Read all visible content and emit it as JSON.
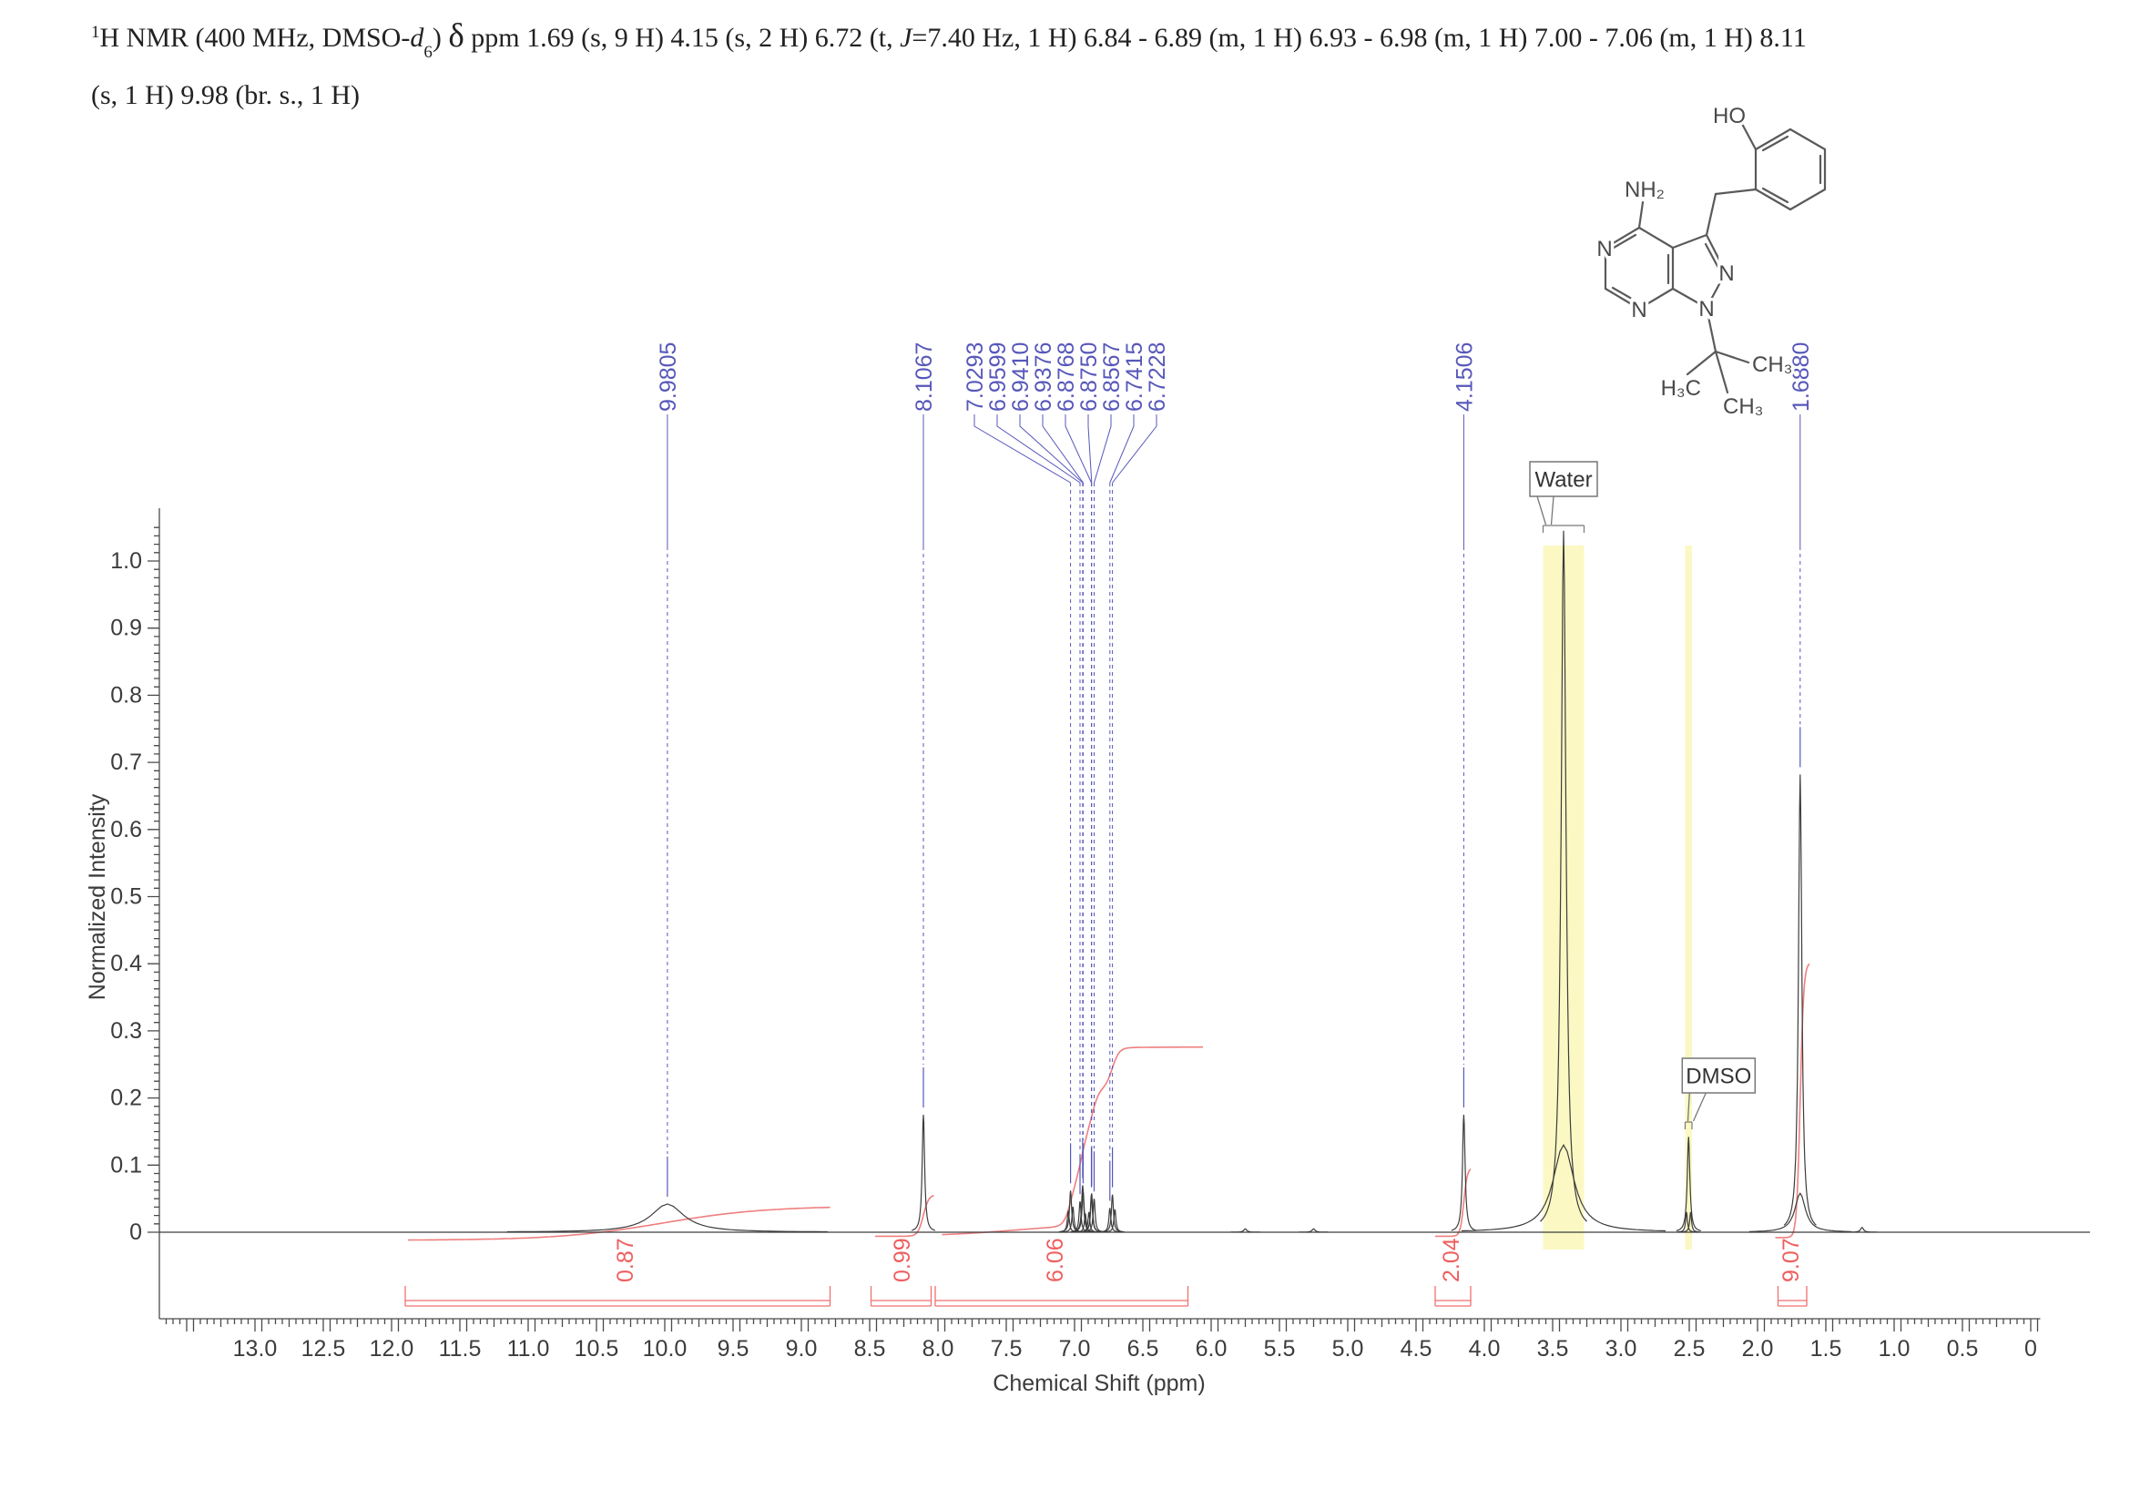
{
  "page": {
    "background": "#ffffff"
  },
  "title": {
    "parts": [
      {
        "t": "1",
        "s": "sup"
      },
      {
        "t": "H NMR (400 MHz, DMSO-"
      },
      {
        "t": "d",
        "s": "i"
      },
      {
        "t": "6",
        "s": "sub"
      },
      {
        "t": ") "
      },
      {
        "t": "δ",
        "s": "delta"
      },
      {
        "t": " ppm 1.69 (s, 9 H) 4.15 (s, 2 H) 6.72 (t, "
      },
      {
        "t": "J",
        "s": "i"
      },
      {
        "t": "=7.40 Hz, 1 H) 6.84 - 6.89 (m, 1 H) 6.93 - 6.98 (m, 1 H) 7.00 - 7.06 (m, 1 H) 8.11"
      },
      {
        "s": "br"
      },
      {
        "t": "(s, 1 H) 9.98 (br. s., 1 H)"
      }
    ]
  },
  "structure": {
    "atoms": [
      "HO",
      "NH₂",
      "N",
      "N",
      "N",
      "N",
      "CH₃",
      "H₃C",
      "CH₃"
    ]
  },
  "chart_data": {
    "type": "line",
    "description": "1H NMR spectrum, 400 MHz, DMSO-d6",
    "xlabel": "Chemical Shift (ppm)",
    "ylabel": "Normalized Intensity",
    "xlim": [
      13.7,
      -0.07
    ],
    "ylim": [
      0,
      1.078
    ],
    "x_axis_reversed": true,
    "grid": false,
    "x_tick_labels": [
      "13.0",
      "12.5",
      "12.0",
      "11.5",
      "11.0",
      "10.5",
      "10.0",
      "9.5",
      "9.0",
      "8.5",
      "8.0",
      "7.5",
      "7.0",
      "6.5",
      "6.0",
      "5.5",
      "5.0",
      "4.5",
      "4.0",
      "3.5",
      "3.0",
      "2.5",
      "2.0",
      "1.5",
      "1.0",
      "0.5",
      "0"
    ],
    "y_tick_labels": [
      "0",
      "0.1",
      "0.2",
      "0.3",
      "0.4",
      "0.5",
      "0.6",
      "0.7",
      "0.8",
      "0.9",
      "1.0"
    ],
    "peak_labels": [
      {
        "text": "9.9805",
        "ppm": 9.9805,
        "label_ppm": 9.9805,
        "top_h": 0.042,
        "cluster": false
      },
      {
        "text": "8.1067",
        "ppm": 8.1067,
        "label_ppm": 8.1067,
        "top_h": 0.175,
        "cluster": false
      },
      {
        "text": "7.0293",
        "ppm": 7.0293,
        "label_ppm": 7.7333,
        "top_h": 0.062,
        "cluster": true
      },
      {
        "text": "6.9599",
        "ppm": 6.9599,
        "label_ppm": 7.5667,
        "top_h": 0.046,
        "cluster": true
      },
      {
        "text": "6.9410",
        "ppm": 6.941,
        "label_ppm": 7.4,
        "top_h": 0.07,
        "cluster": true
      },
      {
        "text": "6.9376",
        "ppm": 6.9376,
        "label_ppm": 7.2333,
        "top_h": 0.062,
        "cluster": true
      },
      {
        "text": "6.8768",
        "ppm": 6.8768,
        "label_ppm": 7.0667,
        "top_h": 0.056,
        "cluster": true
      },
      {
        "text": "6.8750",
        "ppm": 6.875,
        "label_ppm": 6.9,
        "top_h": 0.058,
        "cluster": true
      },
      {
        "text": "6.8567",
        "ppm": 6.8567,
        "label_ppm": 6.7333,
        "top_h": 0.05,
        "cluster": true
      },
      {
        "text": "6.7415",
        "ppm": 6.7415,
        "label_ppm": 6.5667,
        "top_h": 0.036,
        "cluster": true
      },
      {
        "text": "6.7228",
        "ppm": 6.7228,
        "label_ppm": 6.4,
        "top_h": 0.056,
        "cluster": true
      },
      {
        "text": "4.1506",
        "ppm": 4.1506,
        "label_ppm": 4.1506,
        "top_h": 0.175,
        "cluster": false
      },
      {
        "text": "1.6880",
        "ppm": 1.688,
        "label_ppm": 1.688,
        "top_h": 0.682,
        "cluster": false
      }
    ],
    "trace_peaks": [
      {
        "ppm": 9.9805,
        "h": 0.042,
        "w": 22
      },
      {
        "ppm": 8.1067,
        "h": 0.175,
        "w": 1.6
      },
      {
        "ppm": 7.046,
        "h": 0.032,
        "w": 1.3
      },
      {
        "ppm": 7.0293,
        "h": 0.062,
        "w": 1.4
      },
      {
        "ppm": 7.012,
        "h": 0.038,
        "w": 1.3
      },
      {
        "ppm": 6.9599,
        "h": 0.046,
        "w": 1.3
      },
      {
        "ppm": 6.941,
        "h": 0.07,
        "w": 1.4
      },
      {
        "ppm": 6.9376,
        "h": 0.062,
        "w": 1.4
      },
      {
        "ppm": 6.921,
        "h": 0.028,
        "w": 1.2
      },
      {
        "ppm": 6.895,
        "h": 0.03,
        "w": 1.2
      },
      {
        "ppm": 6.8768,
        "h": 0.056,
        "w": 1.3
      },
      {
        "ppm": 6.875,
        "h": 0.058,
        "w": 1.3
      },
      {
        "ppm": 6.8567,
        "h": 0.05,
        "w": 1.3
      },
      {
        "ppm": 6.7415,
        "h": 0.036,
        "w": 1.3
      },
      {
        "ppm": 6.7228,
        "h": 0.056,
        "w": 1.3
      },
      {
        "ppm": 6.7045,
        "h": 0.034,
        "w": 1.3
      },
      {
        "ppm": 5.75,
        "h": 0.005,
        "w": 2
      },
      {
        "ppm": 5.25,
        "h": 0.005,
        "w": 2
      },
      {
        "ppm": 4.1506,
        "h": 0.175,
        "w": 1.7
      },
      {
        "ppm": 3.42,
        "h": 0.13,
        "w": 14
      },
      {
        "ppm": 3.42,
        "h": 1.045,
        "w": 3.2
      },
      {
        "ppm": 2.505,
        "h": 0.142,
        "w": 1.7
      },
      {
        "ppm": 2.52,
        "h": 0.03,
        "w": 1.2
      },
      {
        "ppm": 2.49,
        "h": 0.03,
        "w": 1.2
      },
      {
        "ppm": 1.688,
        "h": 0.058,
        "w": 7
      },
      {
        "ppm": 1.688,
        "h": 0.682,
        "w": 2.2
      },
      {
        "ppm": 1.235,
        "h": 0.007,
        "w": 2
      }
    ],
    "integrals": [
      {
        "label": "0.87",
        "x1": 11.88,
        "x2": 8.79,
        "start": -0.012,
        "steps": [
          {
            "at": 10.02,
            "amt": 0.051,
            "w": 0.38
          }
        ],
        "bracket": [
          11.9,
          8.79
        ],
        "label_ppm": 10.2933
      },
      {
        "label": "0.99",
        "x1": 8.46,
        "x2": 8.03,
        "start": -0.006,
        "steps": [
          {
            "at": 8.107,
            "amt": 0.062,
            "w": 0.02
          }
        ],
        "bracket": [
          8.49,
          8.05
        ],
        "label_ppm": 8.2667
      },
      {
        "label": "6.06",
        "x1": 7.97,
        "x2": 6.06,
        "start": -0.006,
        "steps": [
          {
            "at": 7.45,
            "amt": 0.018,
            "w": 0.28
          },
          {
            "at": 7.03,
            "amt": 0.066,
            "w": 0.025
          },
          {
            "at": 6.949,
            "amt": 0.072,
            "w": 0.025
          },
          {
            "at": 6.868,
            "amt": 0.066,
            "w": 0.025
          },
          {
            "at": 6.723,
            "amt": 0.06,
            "w": 0.025
          }
        ],
        "bracket": [
          8.02,
          6.17
        ],
        "label_ppm": 7.1467
      },
      {
        "label": "2.04",
        "x1": 4.36,
        "x2": 4.1,
        "start": -0.006,
        "steps": [
          {
            "at": 4.1506,
            "amt": 0.102,
            "w": 0.013
          }
        ],
        "bracket": [
          4.36,
          4.1
        ],
        "label_ppm": 4.2467
      },
      {
        "label": "9.07",
        "x1": 1.87,
        "x2": 1.62,
        "start": -0.008,
        "steps": [
          {
            "at": 1.688,
            "amt": 0.41,
            "w": 0.013
          }
        ],
        "bracket": [
          1.85,
          1.64
        ],
        "label_ppm": 1.76
      }
    ],
    "solvents": [
      {
        "label": "Water",
        "band_center": 3.42,
        "band_width_ppm": 0.3,
        "anchor_y": 576
      },
      {
        "label": "DMSO",
        "band_center": 2.505,
        "band_width_ppm": 0.05,
        "anchor_y": 1231
      }
    ],
    "colors": {
      "trace": "#3d3d3d",
      "axis": "#4a4a4a",
      "tick_label": "#3c3c3c",
      "peak_label_blue": "#5757ba",
      "integral_red": "#ef7f7f",
      "integral_text_red": "#ee5f5f",
      "solvent_band_yellow": "#fbf8c3",
      "callout_border": "#777777"
    }
  }
}
